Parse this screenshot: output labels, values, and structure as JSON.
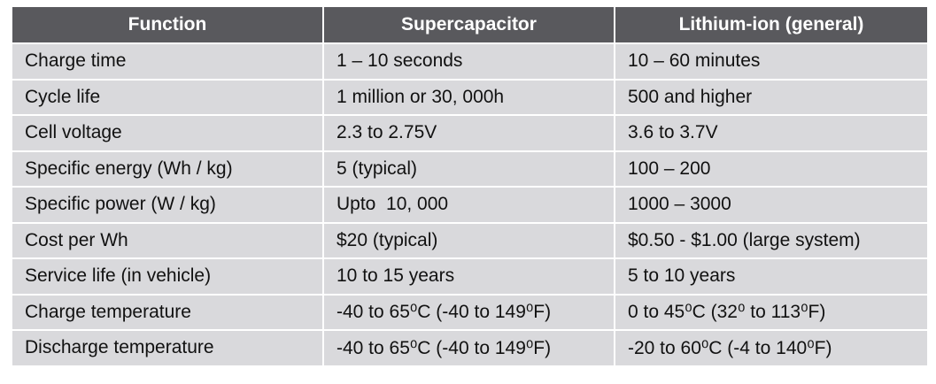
{
  "table": {
    "header": [
      "Function",
      "Supercapacitor",
      "Lithium-ion (general)"
    ],
    "rows": [
      [
        "Charge time",
        "1 – 10 seconds",
        "10 – 60 minutes"
      ],
      [
        "Cycle life",
        "1 million or 30, 000h",
        "500 and higher"
      ],
      [
        "Cell voltage",
        "2.3 to 2.75V",
        "3.6 to 3.7V"
      ],
      [
        "Specific energy (Wh / kg)",
        "5 (typical)",
        "100 – 200"
      ],
      [
        "Specific power (W / kg)",
        "Upto  10, 000",
        "1000 – 3000"
      ],
      [
        "Cost per Wh",
        "$20 (typical)",
        "$0.50 - $1.00 (large system)"
      ],
      [
        "Service life (in vehicle)",
        "10 to 15 years",
        "5 to 10 years"
      ],
      [
        "Charge temperature",
        "-40 to 65⁰C (-40 to 149⁰F)",
        "0 to 45⁰C (32⁰ to 113⁰F)"
      ],
      [
        "Discharge temperature",
        "-40 to 65⁰C (-40 to 149⁰F)",
        "-20 to 60⁰C (-4 to 140⁰F)"
      ]
    ]
  }
}
